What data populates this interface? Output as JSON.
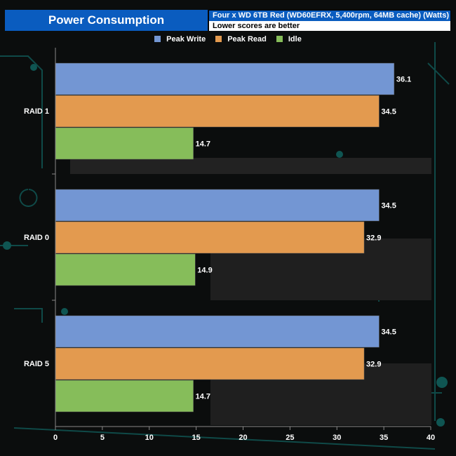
{
  "header": {
    "title": "Power Consumption",
    "subtitle": "Four x WD 6TB Red (WD60EFRX, 5,400rpm, 64MB cache)  (Watts)",
    "note": "Lower scores are better"
  },
  "chart_data": {
    "type": "bar",
    "orientation": "horizontal",
    "categories": [
      "RAID 1",
      "RAID 0",
      "RAID 5"
    ],
    "series": [
      {
        "name": "Peak Write",
        "color": "#7396d3",
        "values": [
          36.1,
          34.5,
          34.5
        ]
      },
      {
        "name": "Peak Read",
        "color": "#e39a4f",
        "values": [
          34.5,
          32.9,
          32.9
        ]
      },
      {
        "name": "Idle",
        "color": "#86bd5a",
        "values": [
          14.7,
          14.9,
          14.7
        ]
      }
    ],
    "xlim": [
      0,
      40
    ],
    "xticks": [
      "0",
      "5",
      "10",
      "15",
      "20",
      "25",
      "30",
      "35",
      "40"
    ],
    "legend": "top",
    "grid": false
  }
}
